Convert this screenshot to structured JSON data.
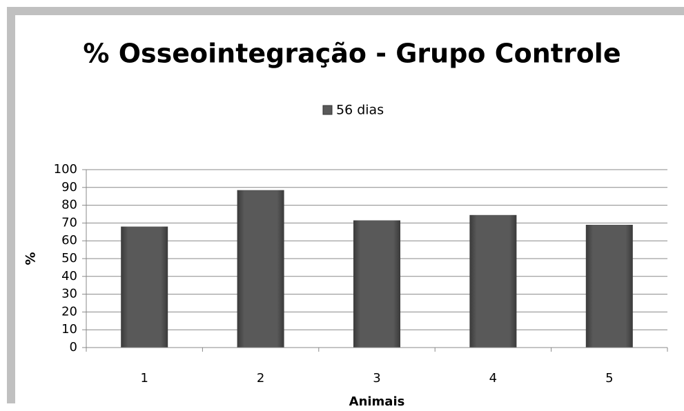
{
  "chart_data": {
    "type": "bar",
    "title": "% Osseointegração - Grupo Controle",
    "legend": "56 dias",
    "ylabel": "%",
    "xlabel": "Animais",
    "categories": [
      "1",
      "2",
      "3",
      "4",
      "5"
    ],
    "series": [
      {
        "name": "56 dias",
        "color": "#595959",
        "values": [
          68,
          88.5,
          71.5,
          74.5,
          69
        ]
      }
    ],
    "ylim": [
      0,
      100
    ],
    "yticks": [
      0,
      10,
      20,
      30,
      40,
      50,
      60,
      70,
      80,
      90,
      100
    ],
    "grid": true
  }
}
